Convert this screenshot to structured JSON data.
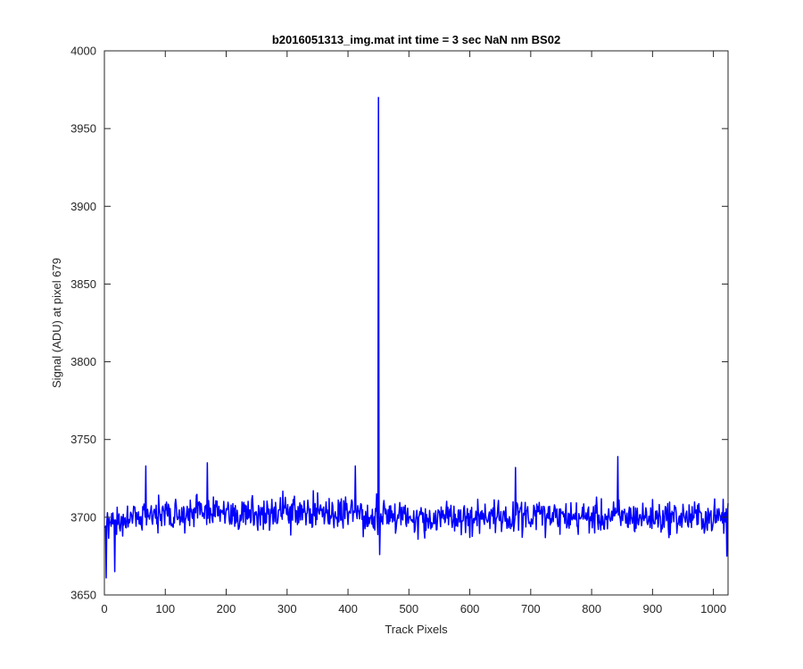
{
  "chart_data": {
    "type": "line",
    "title": "b2016051313_img.mat int time = 3 sec  NaN nm BS02",
    "xlabel": "Track Pixels",
    "ylabel": "Signal (ADU) at pixel 679",
    "xlim": [
      0,
      1024
    ],
    "ylim": [
      3650,
      4000
    ],
    "xticks": [
      0,
      100,
      200,
      300,
      400,
      500,
      600,
      700,
      800,
      900,
      1000
    ],
    "yticks": [
      3650,
      3700,
      3750,
      3800,
      3850,
      3900,
      3950,
      4000
    ],
    "grid": false,
    "series": [
      {
        "color": "#0000ff",
        "line_width": 1.5,
        "x_start": 1,
        "x_step": 1,
        "n_points": 1024,
        "baseline": 3700,
        "noise_amplitude": 12,
        "notable_points": [
          {
            "x": 1,
            "y": 3693
          },
          {
            "x": 3,
            "y": 3661
          },
          {
            "x": 17,
            "y": 3665
          },
          {
            "x": 68,
            "y": 3733
          },
          {
            "x": 169,
            "y": 3735
          },
          {
            "x": 412,
            "y": 3733
          },
          {
            "x": 447,
            "y": 3715
          },
          {
            "x": 450,
            "y": 3970
          },
          {
            "x": 452,
            "y": 3676
          },
          {
            "x": 675,
            "y": 3732
          },
          {
            "x": 843,
            "y": 3739
          },
          {
            "x": 1022,
            "y": 3675
          },
          {
            "x": 1024,
            "y": 3709
          }
        ]
      }
    ]
  }
}
